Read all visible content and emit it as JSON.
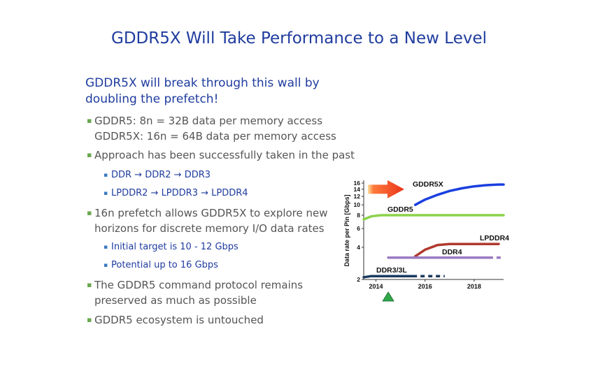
{
  "slide": {
    "title": "GDDR5X Will Take Performance to a New Level",
    "subheading_line1": "GDDR5X will break through this wall by",
    "subheading_line2": "doubling the prefetch!",
    "bullets": [
      {
        "lines": [
          "GDDR5:     8n = 32B data per memory access",
          "GDDR5X:  16n = 64B data per memory access"
        ]
      },
      {
        "lines": [
          "Approach has been successfully taken in the past"
        ]
      },
      {
        "lines": [
          "16n prefetch allows GDDR5X to explore new",
          "horizons for discrete memory I/O data rates"
        ]
      },
      {
        "lines": [
          "The GDDR5 command protocol remains",
          "preserved as much as possible"
        ]
      },
      {
        "lines": [
          "GDDR5 ecosystem is untouched"
        ]
      }
    ],
    "sub_bullets": [
      "DDR → DDR2 → DDR3",
      "LPDDR2 → LPDDR3 → LPDDR4",
      "Initial target is 10 - 12 Gbps",
      "Potential up to 16 Gbps"
    ]
  },
  "chart_data": {
    "type": "line",
    "ylabel": "Data rate per Pin [Gbps]",
    "y_scale": "log",
    "ylim": [
      2,
      16
    ],
    "y_ticks": [
      "2",
      "4",
      "6",
      "8",
      "10",
      "12",
      "14",
      "16"
    ],
    "x_ticks": [
      "2014",
      "2016",
      "2018"
    ],
    "xlim": [
      2013.5,
      2019.2
    ],
    "marker": {
      "x": 2014.5,
      "shape": "triangle",
      "color": "#2ea84a"
    },
    "arrow": {
      "color": "#f05a1a"
    },
    "series": [
      {
        "name": "GDDR5X",
        "color": "#1a3fe0",
        "x": [
          2015.6,
          2016.0,
          2016.5,
          2017.0,
          2017.5,
          2018.0,
          2018.5,
          2019.0,
          2019.2
        ],
        "y": [
          10,
          11.2,
          12.4,
          13.5,
          14.3,
          14.9,
          15.3,
          15.5,
          15.5
        ],
        "dashed_from": null
      },
      {
        "name": "GDDR5",
        "color": "#8cd24c",
        "x": [
          2013.5,
          2013.8,
          2014.2,
          2019.2
        ],
        "y": [
          7.3,
          7.8,
          8,
          8
        ],
        "dashed_from": null
      },
      {
        "name": "LPDDR4",
        "color": "#b03a2e",
        "x": [
          2015.6,
          2016.0,
          2016.5,
          2017.0,
          2018.0,
          2019.0
        ],
        "y": [
          3.3,
          3.8,
          4.2,
          4.3,
          4.3,
          4.3
        ],
        "dashed_from": null
      },
      {
        "name": "DDR4",
        "color": "#9a7bc2",
        "x": [
          2014.5,
          2018.6,
          2019.2
        ],
        "y": [
          3.2,
          3.2,
          3.2
        ],
        "dashed_from": 2018.6
      },
      {
        "name": "DDR3/3L",
        "color": "#1b3a5e",
        "x": [
          2013.5,
          2013.8,
          2014.5,
          2015.5,
          2016.8
        ],
        "y": [
          2.1,
          2.15,
          2.15,
          2.15,
          2.15
        ],
        "dashed_from": 2015.5
      }
    ],
    "labels": [
      "GDDR5X",
      "GDDR5",
      "LPDDR4",
      "DDR4",
      "DDR3/3L"
    ]
  }
}
